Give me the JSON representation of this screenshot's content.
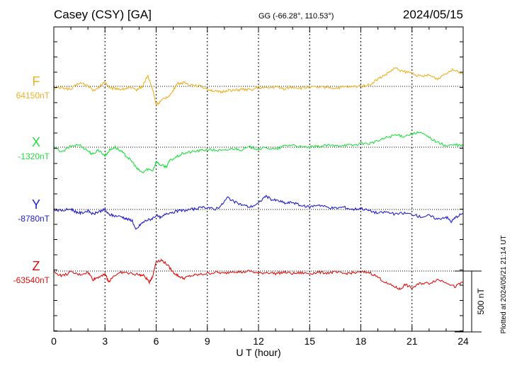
{
  "header": {
    "station": "Casey (CSY)  [GA]",
    "coords": "GG (-66.28°, 110.53°)",
    "date": "2024/05/15"
  },
  "footer_note": "Plotted at 2024/05/21 21:14 UT",
  "chart_data": {
    "type": "line",
    "xlabel": "U T (hour)",
    "xlim": [
      0,
      24
    ],
    "xticks": [
      0,
      3,
      6,
      9,
      12,
      15,
      18,
      21,
      24
    ],
    "grid": true,
    "scale_bar": {
      "label": "500 nT",
      "value_nT": 500
    },
    "series": [
      {
        "name": "F",
        "baseline_label": "64150nT",
        "baseline_nT": 64150,
        "color": "#f0b020",
        "points": [
          [
            0,
            -20
          ],
          [
            0.5,
            -10
          ],
          [
            1,
            -25
          ],
          [
            1.5,
            30
          ],
          [
            2,
            5
          ],
          [
            2.4,
            -40
          ],
          [
            2.8,
            10
          ],
          [
            3,
            40
          ],
          [
            3.3,
            -20
          ],
          [
            3.6,
            -15
          ],
          [
            4,
            -25
          ],
          [
            4.4,
            -10
          ],
          [
            4.8,
            -30
          ],
          [
            5.2,
            0
          ],
          [
            5.5,
            90
          ],
          [
            5.8,
            -30
          ],
          [
            6,
            -150
          ],
          [
            6.3,
            -120
          ],
          [
            6.6,
            -90
          ],
          [
            6.9,
            -60
          ],
          [
            7.2,
            20
          ],
          [
            7.6,
            30
          ],
          [
            8,
            15
          ],
          [
            8.5,
            5
          ],
          [
            9,
            -20
          ],
          [
            9.4,
            -40
          ],
          [
            9.8,
            -50
          ],
          [
            10.2,
            -30
          ],
          [
            10.6,
            -35
          ],
          [
            11,
            -25
          ],
          [
            11.5,
            -30
          ],
          [
            12,
            -10
          ],
          [
            12.5,
            -15
          ],
          [
            13,
            -5
          ],
          [
            13.5,
            -20
          ],
          [
            14,
            -5
          ],
          [
            14.5,
            -15
          ],
          [
            15,
            -5
          ],
          [
            15.5,
            -10
          ],
          [
            16,
            -5
          ],
          [
            16.5,
            -15
          ],
          [
            17,
            -5
          ],
          [
            17.5,
            -5
          ],
          [
            18,
            5
          ],
          [
            18.5,
            10
          ],
          [
            19,
            60
          ],
          [
            19.5,
            100
          ],
          [
            20,
            150
          ],
          [
            20.5,
            120
          ],
          [
            21,
            110
          ],
          [
            21.5,
            80
          ],
          [
            22,
            90
          ],
          [
            22.5,
            60
          ],
          [
            23,
            110
          ],
          [
            23.5,
            140
          ],
          [
            24,
            100
          ]
        ]
      },
      {
        "name": "X",
        "baseline_label": "-1320nT",
        "baseline_nT": -1320,
        "color": "#20e040",
        "points": [
          [
            0,
            0
          ],
          [
            0.5,
            -40
          ],
          [
            1,
            10
          ],
          [
            1.5,
            20
          ],
          [
            2,
            -30
          ],
          [
            2.3,
            -60
          ],
          [
            2.6,
            -20
          ],
          [
            3,
            -70
          ],
          [
            3.3,
            -20
          ],
          [
            3.6,
            0
          ],
          [
            4,
            -40
          ],
          [
            4.3,
            -80
          ],
          [
            4.6,
            -120
          ],
          [
            4.9,
            -180
          ],
          [
            5.2,
            -210
          ],
          [
            5.5,
            -180
          ],
          [
            5.8,
            -190
          ],
          [
            6,
            -120
          ],
          [
            6.3,
            -150
          ],
          [
            6.6,
            -160
          ],
          [
            6.8,
            -110
          ],
          [
            7.2,
            -80
          ],
          [
            7.6,
            -50
          ],
          [
            8,
            -40
          ],
          [
            8.5,
            -30
          ],
          [
            9,
            -20
          ],
          [
            9.5,
            -25
          ],
          [
            10,
            -30
          ],
          [
            10.5,
            -10
          ],
          [
            11,
            -20
          ],
          [
            11.5,
            0
          ],
          [
            12,
            -15
          ],
          [
            12.5,
            -5
          ],
          [
            13,
            -20
          ],
          [
            13.5,
            10
          ],
          [
            14,
            20
          ],
          [
            14.5,
            0
          ],
          [
            15,
            0
          ],
          [
            15.5,
            5
          ],
          [
            16,
            15
          ],
          [
            16.5,
            10
          ],
          [
            17,
            20
          ],
          [
            17.5,
            15
          ],
          [
            18,
            30
          ],
          [
            18.5,
            30
          ],
          [
            19,
            50
          ],
          [
            19.5,
            80
          ],
          [
            20,
            100
          ],
          [
            20.5,
            90
          ],
          [
            21,
            110
          ],
          [
            21.5,
            120
          ],
          [
            22,
            80
          ],
          [
            22.5,
            40
          ],
          [
            23,
            10
          ],
          [
            23.5,
            20
          ],
          [
            24,
            10
          ]
        ]
      },
      {
        "name": "Y",
        "baseline_label": "-8780nT",
        "baseline_nT": -8780,
        "color": "#2020d0",
        "points": [
          [
            0,
            0
          ],
          [
            0.5,
            -10
          ],
          [
            1,
            5
          ],
          [
            1.3,
            -20
          ],
          [
            1.6,
            -30
          ],
          [
            2,
            -10
          ],
          [
            2.3,
            -40
          ],
          [
            2.6,
            -20
          ],
          [
            3,
            0
          ],
          [
            3.2,
            -40
          ],
          [
            3.5,
            -50
          ],
          [
            4,
            -60
          ],
          [
            4.3,
            -80
          ],
          [
            4.6,
            -90
          ],
          [
            4.8,
            -170
          ],
          [
            5.1,
            -120
          ],
          [
            5.4,
            -90
          ],
          [
            5.7,
            -80
          ],
          [
            6,
            -50
          ],
          [
            6.3,
            -70
          ],
          [
            6.6,
            -30
          ],
          [
            7,
            -20
          ],
          [
            7.5,
            -10
          ],
          [
            8,
            0
          ],
          [
            8.5,
            10
          ],
          [
            9,
            20
          ],
          [
            9.4,
            0
          ],
          [
            9.8,
            30
          ],
          [
            10.2,
            100
          ],
          [
            10.6,
            60
          ],
          [
            11,
            40
          ],
          [
            11.5,
            20
          ],
          [
            12,
            50
          ],
          [
            12.4,
            110
          ],
          [
            12.8,
            80
          ],
          [
            13.2,
            70
          ],
          [
            13.6,
            50
          ],
          [
            14,
            60
          ],
          [
            14.5,
            30
          ],
          [
            15,
            20
          ],
          [
            15.5,
            40
          ],
          [
            16,
            20
          ],
          [
            16.5,
            10
          ],
          [
            17,
            20
          ],
          [
            17.5,
            0
          ],
          [
            18,
            10
          ],
          [
            18.5,
            -10
          ],
          [
            19,
            -30
          ],
          [
            19.5,
            -20
          ],
          [
            20,
            -40
          ],
          [
            20.5,
            -30
          ],
          [
            21,
            -40
          ],
          [
            21.5,
            -60
          ],
          [
            22,
            -50
          ],
          [
            22.5,
            -80
          ],
          [
            23,
            -60
          ],
          [
            23.3,
            -100
          ],
          [
            23.6,
            -60
          ],
          [
            24,
            -30
          ]
        ]
      },
      {
        "name": "Z",
        "baseline_label": "-63540nT",
        "baseline_nT": -63540,
        "color": "#e01010",
        "points": [
          [
            0,
            -10
          ],
          [
            0.5,
            -40
          ],
          [
            1,
            -10
          ],
          [
            1.5,
            -30
          ],
          [
            2,
            -10
          ],
          [
            2.3,
            -70
          ],
          [
            2.6,
            -50
          ],
          [
            3,
            -20
          ],
          [
            3.2,
            -90
          ],
          [
            3.5,
            -40
          ],
          [
            4,
            -10
          ],
          [
            4.5,
            -20
          ],
          [
            5,
            -30
          ],
          [
            5.3,
            -40
          ],
          [
            5.6,
            -90
          ],
          [
            5.8,
            -40
          ],
          [
            6,
            80
          ],
          [
            6.3,
            90
          ],
          [
            6.6,
            60
          ],
          [
            7,
            -10
          ],
          [
            7.3,
            -40
          ],
          [
            7.6,
            -60
          ],
          [
            8,
            -40
          ],
          [
            8.5,
            -30
          ],
          [
            9,
            -20
          ],
          [
            9.5,
            -10
          ],
          [
            10,
            -20
          ],
          [
            10.5,
            0
          ],
          [
            11,
            -10
          ],
          [
            11.5,
            0
          ],
          [
            12,
            -20
          ],
          [
            12.5,
            -10
          ],
          [
            13,
            -20
          ],
          [
            13.5,
            -10
          ],
          [
            14,
            -20
          ],
          [
            14.5,
            -15
          ],
          [
            15,
            -20
          ],
          [
            15.5,
            -10
          ],
          [
            16,
            -15
          ],
          [
            16.5,
            -10
          ],
          [
            17,
            -20
          ],
          [
            17.5,
            -15
          ],
          [
            18,
            -10
          ],
          [
            18.5,
            -10
          ],
          [
            19,
            -50
          ],
          [
            19.5,
            -100
          ],
          [
            20,
            -130
          ],
          [
            20.3,
            -150
          ],
          [
            20.6,
            -110
          ],
          [
            21,
            -140
          ],
          [
            21.5,
            -100
          ],
          [
            22,
            -100
          ],
          [
            22.5,
            -70
          ],
          [
            23,
            -90
          ],
          [
            23.5,
            -130
          ],
          [
            24,
            -90
          ]
        ]
      }
    ]
  }
}
